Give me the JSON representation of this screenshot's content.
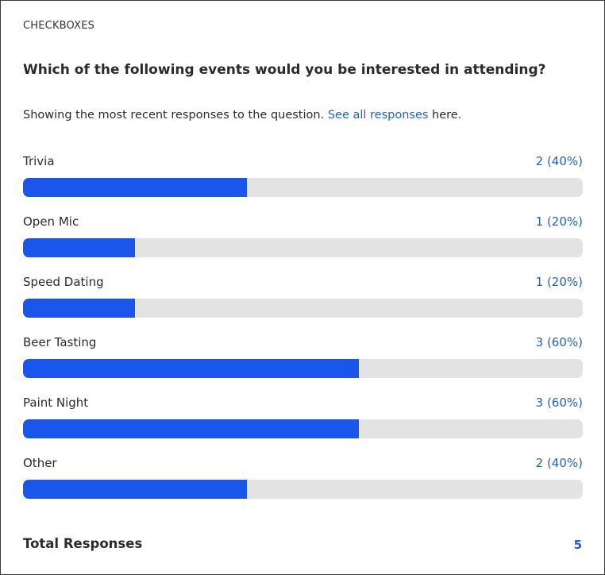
{
  "question": {
    "type_label": "CHECKBOXES",
    "title": "Which of the following events would you be interested in attending?",
    "notice_prefix": "Showing the most recent responses to the question.",
    "notice_link": "See all responses",
    "notice_suffix": "here."
  },
  "colors": {
    "bar_fill": "#1a56eb",
    "bar_track": "#e3e3e3",
    "accent_text": "#1f5fd6"
  },
  "responses": [
    {
      "label": "Trivia",
      "count_text": "2 (40%)",
      "count": 2,
      "percent": 40
    },
    {
      "label": "Open Mic",
      "count_text": "1 (20%)",
      "count": 1,
      "percent": 20
    },
    {
      "label": "Speed Dating",
      "count_text": "1 (20%)",
      "count": 1,
      "percent": 20
    },
    {
      "label": "Beer Tasting",
      "count_text": "3 (60%)",
      "count": 3,
      "percent": 60
    },
    {
      "label": "Paint Night",
      "count_text": "3 (60%)",
      "count": 3,
      "percent": 60
    },
    {
      "label": "Other",
      "count_text": "2 (40%)",
      "count": 2,
      "percent": 40
    }
  ],
  "total": {
    "label": "Total Responses",
    "value": "5"
  }
}
